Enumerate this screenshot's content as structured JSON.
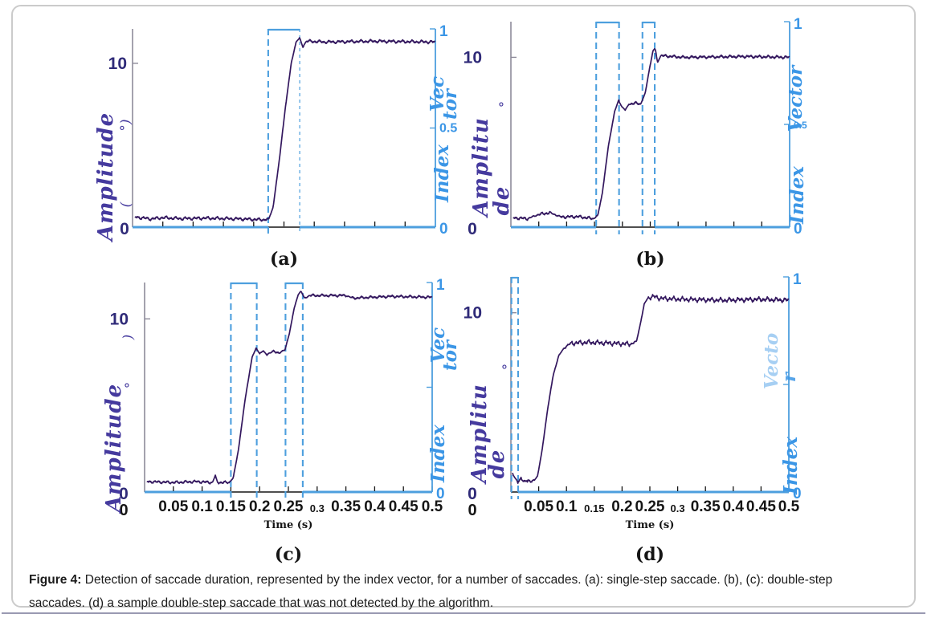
{
  "figure": {
    "caption_label": "Figure 4:",
    "caption_text": " Detection of saccade duration, represented by the index vector, for a number of saccades. (a): single-step saccade. (b), (c): double-step saccades. (d) a sample double-step saccade that was not detected by the algorithm."
  },
  "colors": {
    "trace": "#33175e",
    "index": "#4d9fde",
    "index_text": "#3b96e6",
    "amplitude_text": "#453a9e",
    "axis_num_left": "#2f2a78",
    "axis_left": "#8d8a99",
    "text": "#151515",
    "frame": "#cbcbcb",
    "bottom_rule": "#9a9ab2",
    "background": "#ffffff"
  },
  "chart_data": [
    {
      "id": "a",
      "type": "line",
      "panel_label": "(a)",
      "x_range": [
        0,
        0.5
      ],
      "xlabel": "",
      "x_zero_label": "",
      "x_ticks": [
        [
          0.05,
          ""
        ],
        [
          0.1,
          ""
        ],
        [
          0.15,
          ""
        ],
        [
          0.2,
          ""
        ],
        [
          0.25,
          ""
        ],
        [
          0.3,
          ""
        ],
        [
          0.35,
          ""
        ],
        [
          0.4,
          ""
        ],
        [
          0.45,
          ""
        ]
      ],
      "y_left": {
        "label_lines": [
          "Amplitude"
        ],
        "unit": "(°)",
        "unit_fragments": [
          "°)",
          "("
        ],
        "range": [
          0,
          12.1
        ],
        "ticks": [
          [
            10,
            "10"
          ],
          [
            0,
            "0"
          ]
        ]
      },
      "y_right": {
        "label_lines": [
          "Vec",
          "tor"
        ],
        "label_bottom": "Index",
        "range": [
          0,
          1
        ],
        "ticks": [
          [
            1,
            "1"
          ],
          [
            0.5,
            "0.5"
          ],
          [
            0,
            "0"
          ]
        ]
      },
      "index_pulses": [
        {
          "x1": 0.224,
          "x2": 0.276,
          "thin_right": true
        }
      ],
      "noise": 0.1,
      "series": [
        {
          "name": "saccade amplitude",
          "points": [
            [
              0.004,
              0.62
            ],
            [
              0.03,
              0.5
            ],
            [
              0.05,
              0.58
            ],
            [
              0.08,
              0.52
            ],
            [
              0.12,
              0.55
            ],
            [
              0.18,
              0.5
            ],
            [
              0.215,
              0.45
            ],
            [
              0.225,
              0.5
            ],
            [
              0.232,
              1.2
            ],
            [
              0.242,
              4.0
            ],
            [
              0.252,
              7.2
            ],
            [
              0.262,
              10.0
            ],
            [
              0.27,
              11.3
            ],
            [
              0.276,
              11.55
            ],
            [
              0.281,
              11.0
            ],
            [
              0.287,
              11.35
            ],
            [
              0.32,
              11.3
            ],
            [
              0.4,
              11.35
            ],
            [
              0.499,
              11.3
            ]
          ]
        },
        {
          "name": "index vector",
          "encoding": "pulses: 1 inside index_pulses intervals, 0 elsewhere"
        }
      ]
    },
    {
      "id": "b",
      "type": "line",
      "panel_label": "(b)",
      "x_range": [
        0,
        0.5
      ],
      "xlabel": "",
      "x_zero_label": "",
      "x_ticks": [
        [
          0.05,
          ""
        ],
        [
          0.1,
          ""
        ],
        [
          0.15,
          ""
        ],
        [
          0.2,
          ""
        ],
        [
          0.25,
          ""
        ],
        [
          0.3,
          ""
        ],
        [
          0.35,
          ""
        ],
        [
          0.4,
          ""
        ],
        [
          0.45,
          ""
        ]
      ],
      "y_left": {
        "label_lines": [
          "Amplitu",
          "de"
        ],
        "unit": "(°)",
        "unit_fragments": [
          "°"
        ],
        "range": [
          0,
          12.1
        ],
        "ticks": [
          [
            10,
            "10"
          ],
          [
            0,
            "0"
          ]
        ]
      },
      "y_right": {
        "label_lines": [
          "Vector"
        ],
        "label_bottom": "Index",
        "range": [
          0,
          1
        ],
        "ticks": [
          [
            1,
            "1"
          ],
          [
            0.5,
            "0.5",
            "s"
          ],
          [
            0,
            "0"
          ]
        ]
      },
      "index_pulses": [
        {
          "x1": 0.153,
          "x2": 0.194
        },
        {
          "x1": 0.236,
          "x2": 0.258
        }
      ],
      "noise": 0.09,
      "series": [
        {
          "name": "saccade amplitude",
          "points": [
            [
              0.004,
              0.55
            ],
            [
              0.03,
              0.5
            ],
            [
              0.05,
              0.75
            ],
            [
              0.07,
              0.85
            ],
            [
              0.09,
              0.6
            ],
            [
              0.12,
              0.62
            ],
            [
              0.148,
              0.5
            ],
            [
              0.156,
              0.7
            ],
            [
              0.164,
              2.0
            ],
            [
              0.175,
              4.8
            ],
            [
              0.186,
              6.8
            ],
            [
              0.193,
              7.45
            ],
            [
              0.199,
              7.1
            ],
            [
              0.205,
              6.9
            ],
            [
              0.212,
              7.25
            ],
            [
              0.222,
              7.3
            ],
            [
              0.233,
              7.25
            ],
            [
              0.241,
              7.9
            ],
            [
              0.249,
              9.4
            ],
            [
              0.255,
              10.4
            ],
            [
              0.259,
              10.5
            ],
            [
              0.263,
              9.7
            ],
            [
              0.269,
              10.1
            ],
            [
              0.31,
              10.0
            ],
            [
              0.42,
              10.05
            ],
            [
              0.499,
              10.0
            ]
          ]
        },
        {
          "name": "index vector",
          "encoding": "pulses: 1 inside index_pulses intervals, 0 elsewhere"
        }
      ]
    },
    {
      "id": "c",
      "type": "line",
      "panel_label": "(c)",
      "x_range": [
        0,
        0.5
      ],
      "xlabel": "Time (s)",
      "x_zero_label": "0",
      "x_ticks": [
        [
          0.05,
          "0.05"
        ],
        [
          0.1,
          "0.1"
        ],
        [
          0.15,
          "0.15"
        ],
        [
          0.2,
          "0.2"
        ],
        [
          0.25,
          "0.25"
        ],
        [
          0.3,
          "0.3",
          "s"
        ],
        [
          0.35,
          "0.35"
        ],
        [
          0.4,
          "0.4"
        ],
        [
          0.45,
          "0.45"
        ],
        [
          0.5,
          "0.5"
        ]
      ],
      "y_left": {
        "label_lines": [
          "Amplitude"
        ],
        "unit": "(°)",
        "unit_fragments": [
          ")",
          "°"
        ],
        "range": [
          0,
          12.1
        ],
        "ticks": [
          [
            10,
            "10"
          ],
          [
            0,
            "0"
          ]
        ]
      },
      "y_right": {
        "label_lines": [
          "Vec",
          "tor"
        ],
        "label_bottom": "Index",
        "range": [
          0,
          1
        ],
        "ticks": [
          [
            1,
            "1"
          ],
          [
            0.5,
            ""
          ],
          [
            0,
            "0"
          ]
        ]
      },
      "index_pulses": [
        {
          "x1": 0.15,
          "x2": 0.195
        },
        {
          "x1": 0.245,
          "x2": 0.275
        }
      ],
      "noise": 0.08,
      "series": [
        {
          "name": "saccade amplitude",
          "points": [
            [
              0.004,
              0.6
            ],
            [
              0.05,
              0.55
            ],
            [
              0.09,
              0.6
            ],
            [
              0.118,
              0.55
            ],
            [
              0.123,
              0.95
            ],
            [
              0.127,
              0.55
            ],
            [
              0.147,
              0.55
            ],
            [
              0.154,
              0.8
            ],
            [
              0.163,
              2.4
            ],
            [
              0.175,
              5.4
            ],
            [
              0.187,
              7.8
            ],
            [
              0.194,
              8.3
            ],
            [
              0.2,
              8.0
            ],
            [
              0.206,
              8.15
            ],
            [
              0.212,
              7.95
            ],
            [
              0.222,
              8.1
            ],
            [
              0.235,
              8.05
            ],
            [
              0.244,
              8.2
            ],
            [
              0.252,
              9.2
            ],
            [
              0.26,
              10.6
            ],
            [
              0.267,
              11.4
            ],
            [
              0.272,
              11.6
            ],
            [
              0.278,
              11.2
            ],
            [
              0.287,
              11.35
            ],
            [
              0.35,
              11.35
            ],
            [
              0.362,
              11.2
            ],
            [
              0.43,
              11.3
            ],
            [
              0.499,
              11.25
            ]
          ]
        },
        {
          "name": "index vector",
          "encoding": "pulses: 1 inside index_pulses intervals, 0 elsewhere"
        }
      ]
    },
    {
      "id": "d",
      "type": "line",
      "panel_label": "(d)",
      "x_range": [
        0,
        0.5
      ],
      "xlabel": "Time (s)",
      "x_zero_label": "0",
      "x_ticks": [
        [
          0.05,
          "0.05"
        ],
        [
          0.1,
          "0.1"
        ],
        [
          0.15,
          "0.15",
          "s"
        ],
        [
          0.2,
          "0.2"
        ],
        [
          0.25,
          "0.25"
        ],
        [
          0.3,
          "0.3",
          "s"
        ],
        [
          0.35,
          "0.35"
        ],
        [
          0.4,
          "0.4"
        ],
        [
          0.45,
          "0.45"
        ],
        [
          0.5,
          "0.5"
        ]
      ],
      "y_left": {
        "label_lines": [
          "Amplitu",
          "de"
        ],
        "unit": "(°)",
        "unit_fragments": [
          "°"
        ],
        "range": [
          0,
          12.0
        ],
        "ticks": [
          [
            10,
            "10"
          ],
          [
            0,
            "0"
          ]
        ]
      },
      "y_right": {
        "label_lines": [
          "Vecto",
          "r"
        ],
        "label_bottom": "Index",
        "range": [
          0,
          1
        ],
        "ticks": [
          [
            1,
            "1"
          ],
          [
            0.5,
            ""
          ],
          [
            0,
            "0"
          ]
        ]
      },
      "index_pulses": [
        {
          "x1": 0.001,
          "x2": 0.013
        }
      ],
      "noise": 0.13,
      "series": [
        {
          "name": "saccade amplitude",
          "points": [
            [
              0.003,
              1.0
            ],
            [
              0.007,
              0.8
            ],
            [
              0.012,
              0.6
            ],
            [
              0.018,
              0.72
            ],
            [
              0.024,
              0.55
            ],
            [
              0.03,
              0.7
            ],
            [
              0.036,
              0.55
            ],
            [
              0.042,
              0.65
            ],
            [
              0.048,
              0.9
            ],
            [
              0.056,
              2.3
            ],
            [
              0.066,
              4.6
            ],
            [
              0.076,
              6.5
            ],
            [
              0.086,
              7.6
            ],
            [
              0.096,
              8.05
            ],
            [
              0.108,
              8.3
            ],
            [
              0.14,
              8.35
            ],
            [
              0.18,
              8.3
            ],
            [
              0.215,
              8.25
            ],
            [
              0.226,
              8.4
            ],
            [
              0.233,
              9.4
            ],
            [
              0.24,
              10.5
            ],
            [
              0.247,
              10.85
            ],
            [
              0.257,
              10.9
            ],
            [
              0.27,
              10.8
            ],
            [
              0.31,
              10.75
            ],
            [
              0.38,
              10.7
            ],
            [
              0.45,
              10.75
            ],
            [
              0.499,
              10.7
            ]
          ]
        },
        {
          "name": "index vector",
          "encoding": "pulses: 1 inside index_pulses intervals, 0 elsewhere"
        }
      ]
    }
  ]
}
